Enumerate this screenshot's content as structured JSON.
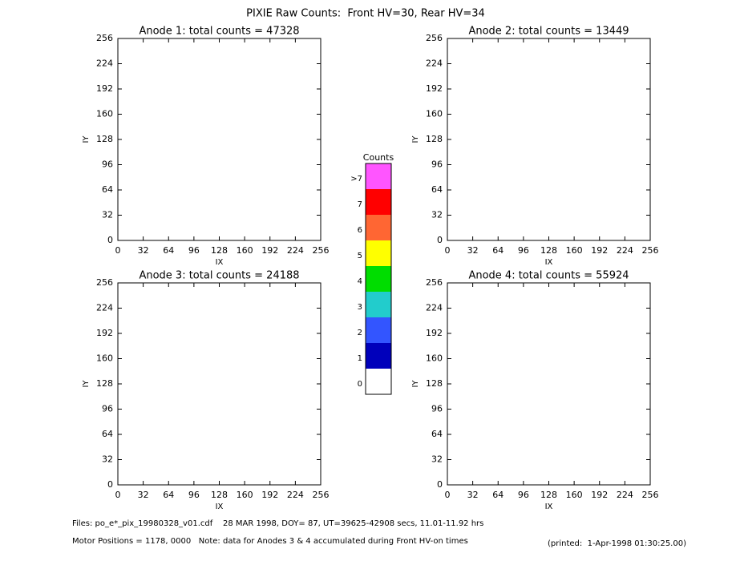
{
  "title": "PIXIE Raw Counts:  Front HV=30, Rear HV=34",
  "chart_data": [
    {
      "type": "heatmap",
      "title": "Anode 1: total counts = 47328",
      "xlabel": "IX",
      "ylabel": "IY",
      "xlim": [
        0,
        256
      ],
      "ylim": [
        0,
        256
      ],
      "xticks": [
        0,
        32,
        64,
        96,
        128,
        160,
        192,
        224,
        256
      ],
      "yticks": [
        0,
        32,
        64,
        96,
        128,
        160,
        192,
        224,
        256
      ]
    },
    {
      "type": "heatmap",
      "title": "Anode 2: total counts = 13449",
      "xlabel": "IX",
      "ylabel": "IY",
      "xlim": [
        0,
        256
      ],
      "ylim": [
        0,
        256
      ],
      "xticks": [
        0,
        32,
        64,
        96,
        128,
        160,
        192,
        224,
        256
      ],
      "yticks": [
        0,
        32,
        64,
        96,
        128,
        160,
        192,
        224,
        256
      ]
    },
    {
      "type": "heatmap",
      "title": "Anode 3: total counts = 24188",
      "xlabel": "IX",
      "ylabel": "IY",
      "xlim": [
        0,
        256
      ],
      "ylim": [
        0,
        256
      ],
      "xticks": [
        0,
        32,
        64,
        96,
        128,
        160,
        192,
        224,
        256
      ],
      "yticks": [
        0,
        32,
        64,
        96,
        128,
        160,
        192,
        224,
        256
      ]
    },
    {
      "type": "heatmap",
      "title": "Anode 4: total counts = 55924",
      "xlabel": "IX",
      "ylabel": "IY",
      "xlim": [
        0,
        256
      ],
      "ylim": [
        0,
        256
      ],
      "xticks": [
        0,
        32,
        64,
        96,
        128,
        160,
        192,
        224,
        256
      ],
      "yticks": [
        0,
        32,
        64,
        96,
        128,
        160,
        192,
        224,
        256
      ]
    }
  ],
  "colorbar": {
    "title": "Counts",
    "labels": [
      "0",
      "1",
      "2",
      "3",
      "4",
      "5",
      "6",
      "7",
      ">7"
    ],
    "colors": [
      "#ffffff",
      "#0000bb",
      "#3355ff",
      "#22cccc",
      "#00dd00",
      "#ffff00",
      "#ff6633",
      "#ff0000",
      "#ff55ff"
    ]
  },
  "footer": {
    "files": "Files: po_e*_pix_19980328_v01.cdf    28 MAR 1998, DOY= 87, UT=39625-42908 secs, 11.01-11.92 hrs",
    "motor": "Motor Positions = 1178, 0000   Note: data for Anodes 3 & 4 accumulated during Front HV-on times",
    "printed": "(printed:  1-Apr-1998 01:30:25.00)"
  }
}
